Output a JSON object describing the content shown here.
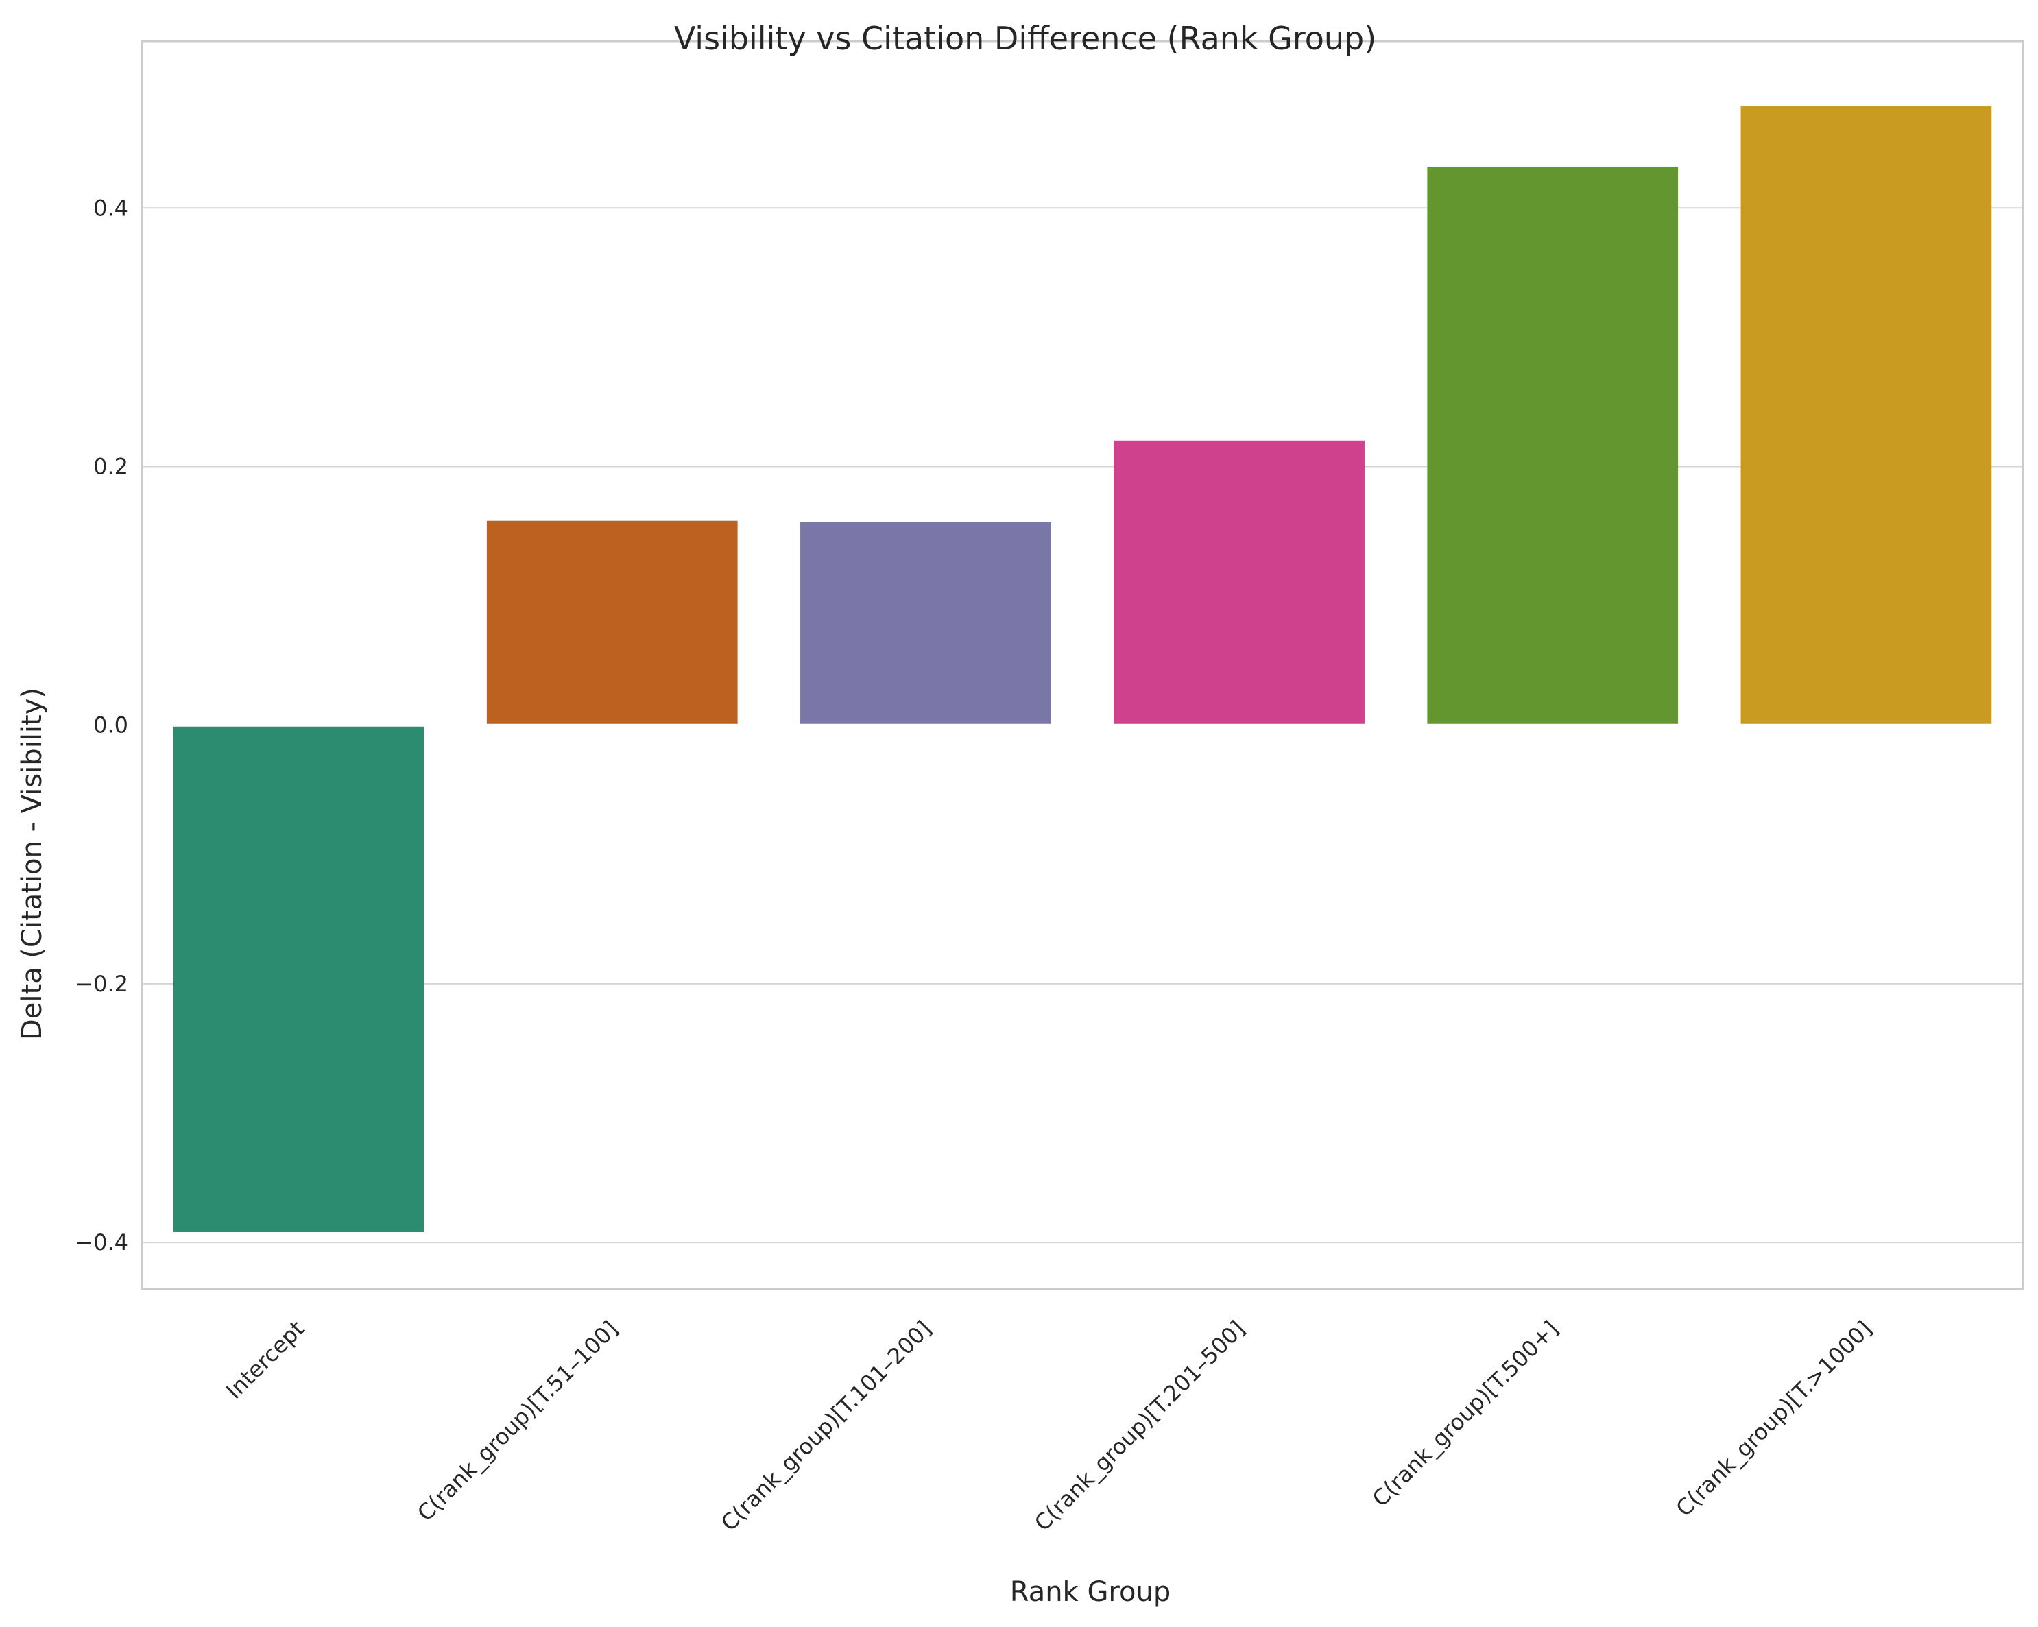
{
  "chart_data": {
    "type": "bar",
    "title": "Visibility vs Citation Difference (Rank Group)",
    "xlabel": "Rank Group",
    "ylabel": "Delta (Citation - Visibility)",
    "categories": [
      "Intercept",
      "C(rank_group)[T.51–100]",
      "C(rank_group)[T.101–200]",
      "C(rank_group)[T.201–500]",
      "C(rank_group)[T.500+]",
      "C(rank_group)[T.>1000]"
    ],
    "values": [
      -0.392,
      0.158,
      0.157,
      0.22,
      0.432,
      0.479
    ],
    "colors": [
      "#2b8c70",
      "#bd6120",
      "#7b76a8",
      "#cf418b",
      "#63962f",
      "#c99b20"
    ],
    "ylim": [
      -0.436,
      0.529
    ],
    "yticks": [
      -0.4,
      -0.2,
      0.0,
      0.2,
      0.4
    ],
    "ytick_labels": [
      "−0.4",
      "−0.2",
      "0.0",
      "0.2",
      "0.4"
    ],
    "grid": "horizontal",
    "legend": "none"
  }
}
